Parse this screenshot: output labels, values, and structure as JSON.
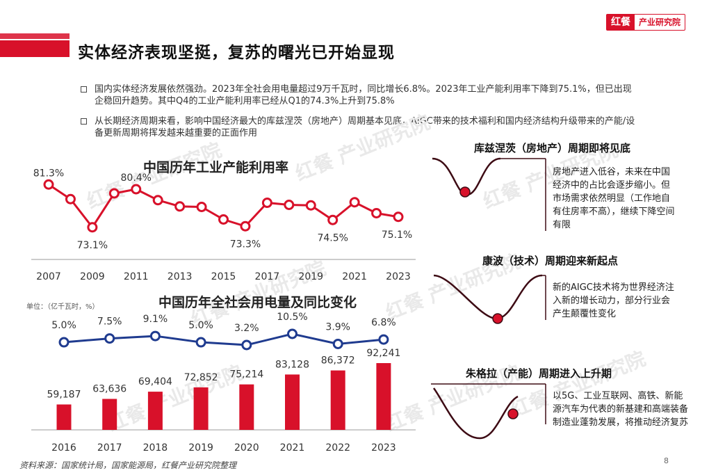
{
  "header": {
    "title": "实体经济表现坚挺，复苏的曙光已开始显现",
    "logo_mark": "红餐",
    "logo_text": "产业研究院"
  },
  "bullets": [
    "国内实体经济发展依然强劲。2023年全社会用电量超过9万千瓦时，同比增长6.8%。2023年工业产能利用率下降到75.1%，但已出现企稳回升趋势。其中Q4的工业产能利用率已经从Q1的74.3%上升到75.8%",
    "从长期经济周期来看，影响中国经济最大的库兹涅茨（房地产）周期基本见底，AIGC带来的技术福利和国内经济结构升级带来的产能/设备更新周期将挥发越来越重要的正面作用"
  ],
  "watermark": "红餐 产业研究院",
  "chart_data": [
    {
      "type": "line",
      "title": "中国历年工业产能利用率",
      "x": [
        2007,
        2008,
        2009,
        2010,
        2011,
        2012,
        2013,
        2014,
        2015,
        2016,
        2017,
        2018,
        2019,
        2020,
        2021,
        2022,
        2023
      ],
      "values": [
        81.3,
        78.5,
        73.1,
        79.6,
        80.4,
        78.3,
        77.1,
        77.0,
        74.6,
        73.3,
        77.8,
        77.4,
        77.3,
        74.5,
        77.9,
        75.8,
        75.1
      ],
      "point_labels": [
        {
          "x": 2007,
          "label": "81.3%"
        },
        {
          "x": 2009,
          "label": "73.1%"
        },
        {
          "x": 2011,
          "label": "80.4%"
        },
        {
          "x": 2016,
          "label": "73.3%"
        },
        {
          "x": 2020,
          "label": "74.5%"
        },
        {
          "x": 2023,
          "label": "75.1%"
        }
      ],
      "x_ticks": [
        "2007",
        "2009",
        "2011",
        "2013",
        "2015",
        "2017",
        "2019",
        "2021",
        "2023"
      ],
      "color": "#d8112a"
    },
    {
      "type": "bar",
      "title": "中国历年全社会用电量及同比变化",
      "unit": "单位：（亿千瓦时，%）",
      "categories": [
        "2016",
        "2017",
        "2018",
        "2019",
        "2020",
        "2021",
        "2022",
        "2023"
      ],
      "series": [
        {
          "values": [
            59187,
            63636,
            69404,
            72852,
            75214,
            83128,
            86372,
            92241
          ],
          "labels": [
            "59,187",
            "63,636",
            "69,404",
            "72,852",
            "75,214",
            "83,128",
            "86,372",
            "92,241"
          ],
          "color": "#d8112a"
        },
        {
          "type": "line",
          "values": [
            5.0,
            7.5,
            9.1,
            5.0,
            3.2,
            10.5,
            3.9,
            6.8
          ],
          "labels": [
            "5.0%",
            "7.5%",
            "9.1%",
            "5.0%",
            "3.2%",
            "10.5%",
            "3.9%",
            "6.8%"
          ],
          "color": "#1f3b8f"
        }
      ]
    }
  ],
  "cycles": [
    {
      "title": "库兹涅茨（房地产）周期即将见底",
      "text": "房地产进入低谷，未来在中国经济中的占比会逐步缩小。但市场需求依然明显（工作地自有住房率不高），继续下降空间有限"
    },
    {
      "title": "康波（技术）周期迎来新起点",
      "text": "新的AIGC技术将为世界经济注入新的增长动力，部分行业会产生颠覆性变化"
    },
    {
      "title": "朱格拉（产能）周期进入上升期",
      "text": "以5G、工业互联网、高铁、新能源汽车为代表的新基建和高端装备制造业蓬勃发展，将推动经济复苏"
    }
  ],
  "footer": {
    "source": "资料来源：国家统计局，国家能源局，红餐产业研究院整理",
    "page": "8"
  }
}
